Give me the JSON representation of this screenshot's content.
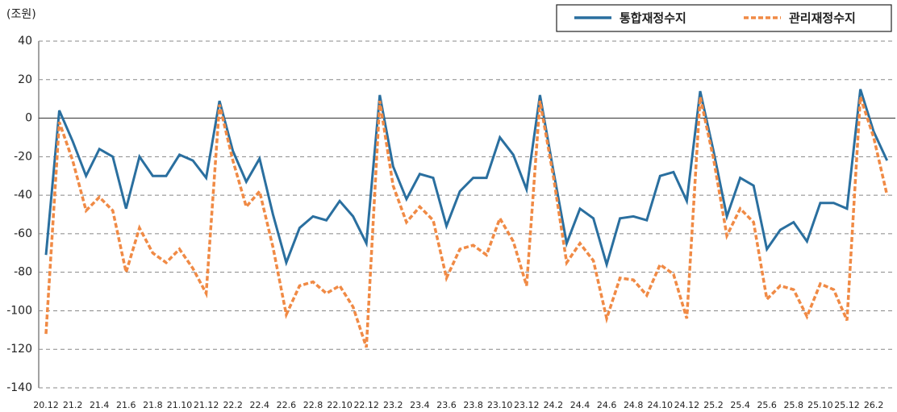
{
  "chart_data": {
    "type": "line",
    "y_label": "(조원)",
    "categories": [
      "20.12",
      null,
      "21.2",
      null,
      "21.4",
      null,
      "21.6",
      null,
      "21.8",
      null,
      "21.10",
      null,
      "21.12",
      null,
      "22.2",
      null,
      "22.4",
      null,
      "22.6",
      null,
      "22.8",
      null,
      "22.10",
      null,
      "22.12",
      null,
      "23.2",
      null,
      "23.4",
      null,
      "23.6",
      null,
      "23.8",
      null,
      "23.10",
      null,
      "23.12",
      null,
      "24.2",
      null,
      "24.4",
      null,
      "24.6",
      null,
      "24.8",
      null,
      "24.10",
      null,
      "24.12",
      null,
      "25.2",
      null,
      "25.4",
      null,
      "25.6",
      null,
      "25.8",
      null,
      "25.10",
      null,
      "25.12",
      null,
      "26.2",
      null
    ],
    "series": [
      {
        "name": "통합재정수지",
        "color": "#2a6f9f",
        "line_style": "solid",
        "values": [
          -71,
          4,
          -12,
          -30,
          -16,
          -20,
          -47,
          -20,
          -30,
          -30,
          -19,
          -22,
          -31,
          9,
          -17,
          -33,
          -21,
          -50,
          -75,
          -57,
          -51,
          -53,
          -43,
          -51,
          -65,
          12,
          -25,
          -42,
          -29,
          -31,
          -56,
          -38,
          -31,
          -31,
          -10,
          -19,
          -37,
          12,
          -27,
          -65,
          -47,
          -52,
          -76,
          -52,
          -51,
          -53,
          -30,
          -28,
          -43,
          14,
          -17,
          -51,
          -31,
          -35,
          -68,
          -58,
          -54,
          -64,
          -44,
          -44,
          -47,
          15,
          -7,
          -22
        ]
      },
      {
        "name": "관리재정수지",
        "color": "#f08a45",
        "line_style": "dashed",
        "values": [
          -112,
          -2,
          -22,
          -48,
          -41,
          -48,
          -80,
          -57,
          -70,
          -75,
          -68,
          -78,
          -91,
          7,
          -22,
          -46,
          -38,
          -67,
          -102,
          -87,
          -85,
          -91,
          -87,
          -98,
          -119,
          9,
          -35,
          -54,
          -46,
          -53,
          -83,
          -68,
          -66,
          -71,
          -52,
          -64,
          -87,
          9,
          -30,
          -75,
          -65,
          -74,
          -104,
          -83,
          -84,
          -92,
          -76,
          -81,
          -104,
          11,
          -21,
          -61,
          -47,
          -54,
          -94,
          -87,
          -89,
          -103,
          -86,
          -89,
          -105,
          11,
          -10,
          -40
        ]
      }
    ],
    "ylim": [
      -140,
      40
    ],
    "yticks": [
      -140,
      -120,
      -100,
      -80,
      -60,
      -40,
      -20,
      0,
      20,
      40
    ],
    "grid": true,
    "legend": "top-right"
  }
}
